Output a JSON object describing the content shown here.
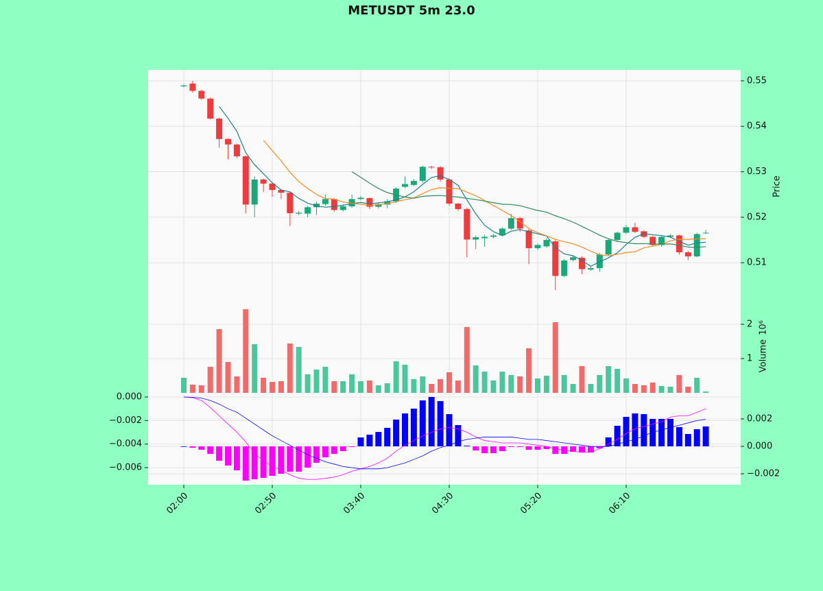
{
  "chart_data": {
    "type": "candlestick",
    "title": "METUSDT 5m 23.0",
    "x": [
      "02:00",
      "02:05",
      "02:10",
      "02:15",
      "02:20",
      "02:25",
      "02:30",
      "02:35",
      "02:40",
      "02:45",
      "02:50",
      "02:55",
      "03:00",
      "03:05",
      "03:10",
      "03:15",
      "03:20",
      "03:25",
      "03:30",
      "03:35",
      "03:40",
      "03:45",
      "03:50",
      "03:55",
      "04:00",
      "04:05",
      "04:10",
      "04:15",
      "04:20",
      "04:25",
      "04:30",
      "04:35",
      "04:40",
      "04:45",
      "04:50",
      "04:55",
      "05:00",
      "05:05",
      "05:10",
      "05:15",
      "05:20",
      "05:25",
      "05:30",
      "05:35",
      "05:40",
      "05:45",
      "05:50",
      "05:55",
      "06:00",
      "06:05",
      "06:10",
      "06:15",
      "06:20",
      "06:25",
      "06:30",
      "06:35",
      "06:40",
      "06:45",
      "06:50",
      "06:55"
    ],
    "xticks": [
      "02:00",
      "02:50",
      "03:40",
      "04:30",
      "05:20",
      "06:10"
    ],
    "open": [
      0.5488,
      0.5494,
      0.5478,
      0.5461,
      0.5417,
      0.5372,
      0.536,
      0.5334,
      0.5228,
      0.5283,
      0.5274,
      0.526,
      0.5254,
      0.5208,
      0.5208,
      0.5222,
      0.5229,
      0.524,
      0.5216,
      0.5224,
      0.524,
      0.5242,
      0.5223,
      0.5228,
      0.5235,
      0.5267,
      0.5271,
      0.528,
      0.5311,
      0.531,
      0.5283,
      0.523,
      0.5218,
      0.5151,
      0.5154,
      0.5157,
      0.516,
      0.5175,
      0.5198,
      0.5171,
      0.5132,
      0.5136,
      0.5147,
      0.5071,
      0.5106,
      0.5111,
      0.5085,
      0.5088,
      0.5118,
      0.515,
      0.5166,
      0.5178,
      0.5169,
      0.5157,
      0.5139,
      0.5157,
      0.516,
      0.5123,
      0.5114,
      0.5165
    ],
    "high": [
      0.5492,
      0.55,
      0.548,
      0.5463,
      0.5419,
      0.5374,
      0.5362,
      0.5336,
      0.529,
      0.5285,
      0.5276,
      0.5262,
      0.5256,
      0.5214,
      0.5225,
      0.5235,
      0.525,
      0.5242,
      0.5228,
      0.525,
      0.5247,
      0.5244,
      0.5232,
      0.524,
      0.5266,
      0.529,
      0.5284,
      0.5313,
      0.5313,
      0.5313,
      0.5286,
      0.5232,
      0.5221,
      0.516,
      0.5162,
      0.5163,
      0.5178,
      0.5208,
      0.5201,
      0.5174,
      0.5142,
      0.5154,
      0.515,
      0.5108,
      0.5115,
      0.5114,
      0.5091,
      0.5121,
      0.5152,
      0.5168,
      0.5183,
      0.5188,
      0.5171,
      0.5159,
      0.5159,
      0.5163,
      0.5162,
      0.5126,
      0.5166,
      0.5172
    ],
    "low": [
      0.5486,
      0.5474,
      0.5458,
      0.5415,
      0.5353,
      0.5327,
      0.533,
      0.5209,
      0.52,
      0.5255,
      0.5245,
      0.524,
      0.5181,
      0.5205,
      0.52,
      0.5205,
      0.5225,
      0.5212,
      0.5213,
      0.5221,
      0.5238,
      0.5218,
      0.5219,
      0.522,
      0.5231,
      0.5264,
      0.5268,
      0.5276,
      0.5306,
      0.5278,
      0.5225,
      0.5214,
      0.5112,
      0.513,
      0.5135,
      0.5154,
      0.5158,
      0.5172,
      0.5168,
      0.5097,
      0.5128,
      0.5133,
      0.504,
      0.5069,
      0.5103,
      0.5075,
      0.5082,
      0.508,
      0.5115,
      0.5147,
      0.5163,
      0.5165,
      0.5154,
      0.5136,
      0.5135,
      0.5155,
      0.5118,
      0.5106,
      0.5112,
      0.5163
    ],
    "close": [
      0.549,
      0.5478,
      0.5461,
      0.5417,
      0.5372,
      0.536,
      0.5334,
      0.5228,
      0.5283,
      0.5274,
      0.526,
      0.5254,
      0.5209,
      0.521,
      0.5222,
      0.523,
      0.524,
      0.5216,
      0.5224,
      0.524,
      0.5243,
      0.5223,
      0.5229,
      0.5235,
      0.5263,
      0.5273,
      0.528,
      0.5311,
      0.531,
      0.5283,
      0.523,
      0.5218,
      0.5151,
      0.5156,
      0.5157,
      0.516,
      0.5175,
      0.5198,
      0.5175,
      0.5132,
      0.5139,
      0.515,
      0.5071,
      0.5105,
      0.5112,
      0.5086,
      0.5088,
      0.5118,
      0.515,
      0.5166,
      0.5178,
      0.5168,
      0.5157,
      0.5139,
      0.5157,
      0.516,
      0.5123,
      0.5114,
      0.5163,
      0.5166
    ],
    "up_color": "#1aa87a",
    "down_color": "#ef3b3b",
    "ylim": [
      0.5037,
      0.5524
    ],
    "yticks": [
      0.51,
      0.52,
      0.53,
      0.54,
      0.55
    ],
    "ylabel": "Price",
    "grid": true,
    "ma": [
      {
        "color": "#1c7f8c",
        "values": [
          null,
          null,
          null,
          null,
          0.54436,
          0.54176,
          0.53888,
          0.53422,
          0.53154,
          0.52958,
          0.52758,
          0.52598,
          0.5256,
          0.52414,
          0.5231,
          0.5225,
          0.52222,
          0.52236,
          0.52264,
          0.523,
          0.52326,
          0.52292,
          0.52318,
          0.5234,
          0.52386,
          0.52446,
          0.5256,
          0.52724,
          0.52874,
          0.52914,
          0.52828,
          0.52704,
          0.52384,
          0.52076,
          0.51824,
          0.51684,
          0.51598,
          0.51692,
          0.5173,
          0.5168,
          0.51638,
          0.51588,
          0.51334,
          0.51194,
          0.51154,
          0.51048,
          0.50924,
          0.51018,
          0.51108,
          0.51216,
          0.514,
          0.5156,
          0.51638,
          0.51616,
          0.51598,
          0.51562,
          0.51472,
          0.51386,
          0.51434,
          0.51452
        ]
      },
      {
        "color": "#f58a1f",
        "values": [
          null,
          null,
          null,
          null,
          null,
          null,
          null,
          null,
          null,
          0.53697,
          0.53467,
          0.53243,
          0.52991,
          0.52784,
          0.52634,
          0.52504,
          0.5241,
          0.52398,
          0.52339,
          0.52305,
          0.52288,
          0.52257,
          0.52277,
          0.52302,
          0.52343,
          0.52386,
          0.52426,
          0.52521,
          0.52607,
          0.5265,
          0.52637,
          0.52632,
          0.52554,
          0.52475,
          0.52369,
          0.52256,
          0.52151,
          0.52038,
          0.51903,
          0.51752,
          0.51661,
          0.51593,
          0.51513,
          0.51462,
          0.51417,
          0.51343,
          0.51256,
          0.51176,
          0.51151,
          0.51185,
          0.51224,
          0.51242,
          0.51328,
          0.51362,
          0.51407,
          0.51481,
          0.51516,
          0.51512,
          0.51525,
          0.51525
        ]
      },
      {
        "color": "#2e8b57",
        "values": [
          null,
          null,
          null,
          null,
          null,
          null,
          null,
          null,
          null,
          null,
          null,
          null,
          null,
          null,
          null,
          null,
          null,
          null,
          null,
          0.53001,
          0.52878,
          0.5275,
          0.52634,
          0.52543,
          0.52489,
          0.52445,
          0.52418,
          0.5246,
          0.52473,
          0.52478,
          0.52463,
          0.52445,
          0.52416,
          0.52389,
          0.52356,
          0.52321,
          0.52289,
          0.5228,
          0.52255,
          0.52201,
          0.52149,
          0.52113,
          0.52034,
          0.51969,
          0.51893,
          0.518,
          0.51704,
          0.51607,
          0.51527,
          0.51469,
          0.51443,
          0.51418,
          0.51421,
          0.51412,
          0.51412,
          0.51412,
          0.51386,
          0.51344,
          0.51338,
          0.51355
        ]
      }
    ],
    "volume": {
      "label": "Volume",
      "scale_label": "10⁶",
      "values": [
        0.44,
        0.24,
        0.22,
        0.76,
        1.86,
        0.9,
        0.48,
        2.44,
        1.42,
        0.44,
        0.32,
        0.34,
        1.44,
        1.34,
        0.54,
        0.68,
        0.76,
        0.34,
        0.34,
        0.54,
        0.34,
        0.36,
        0.22,
        0.28,
        0.92,
        0.82,
        0.4,
        0.48,
        0.26,
        0.4,
        0.6,
        0.36,
        1.92,
        0.8,
        0.62,
        0.36,
        0.62,
        0.52,
        0.48,
        1.3,
        0.42,
        0.5,
        2.06,
        0.52,
        0.26,
        0.78,
        0.26,
        0.52,
        0.78,
        0.7,
        0.42,
        0.26,
        0.22,
        0.3,
        0.2,
        0.18,
        0.52,
        0.18,
        0.44,
        0.04
      ],
      "up_color": "#4cc79b",
      "down_color": "#f26a6a",
      "ylim": [
        0,
        2.96
      ],
      "yticks": [
        1,
        2
      ]
    },
    "macd": {
      "lines": [
        {
          "color": "#ff00ff",
          "values": [
            0,
            -6e-05,
            -0.0003,
            -0.0009,
            -0.0016,
            -0.0023,
            -0.003,
            -0.0038,
            -0.0048,
            -0.0054,
            -0.0059,
            -0.0062,
            -0.0066,
            -0.0069,
            -0.007,
            -0.007,
            -0.0069,
            -0.0068,
            -0.0066,
            -0.0063,
            -0.0061,
            -0.0059,
            -0.0056,
            -0.0052,
            -0.0046,
            -0.0041,
            -0.0037,
            -0.0033,
            -0.003,
            -0.0027,
            -0.0026,
            -0.0027,
            -0.003,
            -0.0034,
            -0.0037,
            -0.0038,
            -0.0039,
            -0.0039,
            -0.0039,
            -0.004,
            -0.0041,
            -0.0042,
            -0.0044,
            -0.0045,
            -0.0046,
            -0.0047,
            -0.0047,
            -0.0044,
            -0.004,
            -0.0036,
            -0.0031,
            -0.0027,
            -0.0025,
            -0.0023,
            -0.0021,
            -0.0017,
            -0.0016,
            -0.0016,
            -0.0013,
            -0.001
          ]
        },
        {
          "color": "#0000ff",
          "values": [
            0,
            -3e-05,
            -0.0001,
            -0.0003,
            -0.0006,
            -0.001,
            -0.0013,
            -0.0018,
            -0.0023,
            -0.0028,
            -0.0033,
            -0.0037,
            -0.0041,
            -0.0045,
            -0.0049,
            -0.0052,
            -0.0055,
            -0.0057,
            -0.0059,
            -0.006,
            -0.0061,
            -0.0061,
            -0.0061,
            -0.006,
            -0.0058,
            -0.0056,
            -0.0053,
            -0.005,
            -0.0046,
            -0.0043,
            -0.0041,
            -0.0038,
            -0.0036,
            -0.0035,
            -0.0034,
            -0.0034,
            -0.0034,
            -0.0034,
            -0.0035,
            -0.0036,
            -0.0036,
            -0.0037,
            -0.0038,
            -0.0039,
            -0.004,
            -0.0041,
            -0.0042,
            -0.0042,
            -0.0042,
            -0.004,
            -0.0038,
            -0.0036,
            -0.0033,
            -0.003,
            -0.0028,
            -0.0026,
            -0.0024,
            -0.0022,
            -0.002,
            -0.0019
          ]
        }
      ],
      "ylim": [
        -0.00745,
        0.00035
      ],
      "yticks": [
        {
          "value": 0,
          "label": "0.000"
        },
        {
          "value": -0.002,
          "label": "−0.002"
        },
        {
          "value": -0.004,
          "label": "−0.004"
        },
        {
          "value": -0.006,
          "label": "−0.006"
        }
      ],
      "histogram": {
        "values": [
          0,
          -0.0001,
          -0.00025,
          -0.00055,
          -0.00105,
          -0.0014,
          -0.00175,
          -0.0025,
          -0.0024,
          -0.0023,
          -0.00215,
          -0.002,
          -0.00185,
          -0.00185,
          -0.00155,
          -0.0012,
          -0.0008,
          -0.00055,
          -0.00035,
          -5e-05,
          0.00065,
          0.00085,
          0.00105,
          0.00135,
          0.00195,
          0.0024,
          0.00275,
          0.00335,
          0.0036,
          0.0033,
          0.00235,
          0.00155,
          5e-05,
          -0.0003,
          -0.0005,
          -0.0005,
          -0.00035,
          -5e-05,
          -5e-05,
          -0.00025,
          -0.00025,
          -0.0002,
          -0.00055,
          -0.00055,
          -0.0004,
          -0.00045,
          -0.00045,
          -0.00015,
          0.00065,
          0.0015,
          0.00215,
          0.0024,
          0.00235,
          0.002,
          0.002,
          0.002,
          0.0014,
          0.0009,
          0.00125,
          0.00145
        ],
        "up_color": "#0000ff",
        "down_color": "#ff00ff",
        "y2lim": [
          -0.0028,
          0.0039
        ],
        "y2ticks": [
          {
            "value": -0.002,
            "label": "−0.002"
          },
          {
            "value": 0,
            "label": "0.000"
          },
          {
            "value": 0.002,
            "label": "0.002"
          }
        ]
      }
    }
  }
}
